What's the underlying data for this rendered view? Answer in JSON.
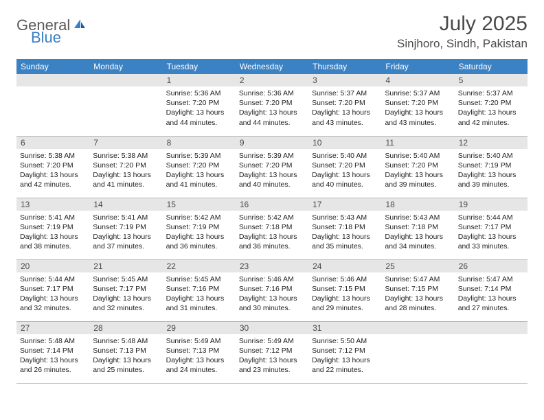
{
  "logo": {
    "general": "General",
    "blue": "Blue"
  },
  "title": {
    "month": "July 2025",
    "location": "Sinjhoro, Sindh, Pakistan"
  },
  "colors": {
    "header_bg": "#3b82c4",
    "header_text": "#ffffff",
    "daynum_bg": "#e6e6e6",
    "daynum_text": "#4a4a4a",
    "border": "#b8b8b8",
    "body_text": "#222222",
    "logo_gray": "#5a5a5a",
    "logo_blue": "#3b7fc4"
  },
  "day_headers": [
    "Sunday",
    "Monday",
    "Tuesday",
    "Wednesday",
    "Thursday",
    "Friday",
    "Saturday"
  ],
  "weeks": [
    [
      null,
      null,
      {
        "num": "1",
        "sunrise": "Sunrise: 5:36 AM",
        "sunset": "Sunset: 7:20 PM",
        "day1": "Daylight: 13 hours",
        "day2": "and 44 minutes."
      },
      {
        "num": "2",
        "sunrise": "Sunrise: 5:36 AM",
        "sunset": "Sunset: 7:20 PM",
        "day1": "Daylight: 13 hours",
        "day2": "and 44 minutes."
      },
      {
        "num": "3",
        "sunrise": "Sunrise: 5:37 AM",
        "sunset": "Sunset: 7:20 PM",
        "day1": "Daylight: 13 hours",
        "day2": "and 43 minutes."
      },
      {
        "num": "4",
        "sunrise": "Sunrise: 5:37 AM",
        "sunset": "Sunset: 7:20 PM",
        "day1": "Daylight: 13 hours",
        "day2": "and 43 minutes."
      },
      {
        "num": "5",
        "sunrise": "Sunrise: 5:37 AM",
        "sunset": "Sunset: 7:20 PM",
        "day1": "Daylight: 13 hours",
        "day2": "and 42 minutes."
      }
    ],
    [
      {
        "num": "6",
        "sunrise": "Sunrise: 5:38 AM",
        "sunset": "Sunset: 7:20 PM",
        "day1": "Daylight: 13 hours",
        "day2": "and 42 minutes."
      },
      {
        "num": "7",
        "sunrise": "Sunrise: 5:38 AM",
        "sunset": "Sunset: 7:20 PM",
        "day1": "Daylight: 13 hours",
        "day2": "and 41 minutes."
      },
      {
        "num": "8",
        "sunrise": "Sunrise: 5:39 AM",
        "sunset": "Sunset: 7:20 PM",
        "day1": "Daylight: 13 hours",
        "day2": "and 41 minutes."
      },
      {
        "num": "9",
        "sunrise": "Sunrise: 5:39 AM",
        "sunset": "Sunset: 7:20 PM",
        "day1": "Daylight: 13 hours",
        "day2": "and 40 minutes."
      },
      {
        "num": "10",
        "sunrise": "Sunrise: 5:40 AM",
        "sunset": "Sunset: 7:20 PM",
        "day1": "Daylight: 13 hours",
        "day2": "and 40 minutes."
      },
      {
        "num": "11",
        "sunrise": "Sunrise: 5:40 AM",
        "sunset": "Sunset: 7:20 PM",
        "day1": "Daylight: 13 hours",
        "day2": "and 39 minutes."
      },
      {
        "num": "12",
        "sunrise": "Sunrise: 5:40 AM",
        "sunset": "Sunset: 7:19 PM",
        "day1": "Daylight: 13 hours",
        "day2": "and 39 minutes."
      }
    ],
    [
      {
        "num": "13",
        "sunrise": "Sunrise: 5:41 AM",
        "sunset": "Sunset: 7:19 PM",
        "day1": "Daylight: 13 hours",
        "day2": "and 38 minutes."
      },
      {
        "num": "14",
        "sunrise": "Sunrise: 5:41 AM",
        "sunset": "Sunset: 7:19 PM",
        "day1": "Daylight: 13 hours",
        "day2": "and 37 minutes."
      },
      {
        "num": "15",
        "sunrise": "Sunrise: 5:42 AM",
        "sunset": "Sunset: 7:19 PM",
        "day1": "Daylight: 13 hours",
        "day2": "and 36 minutes."
      },
      {
        "num": "16",
        "sunrise": "Sunrise: 5:42 AM",
        "sunset": "Sunset: 7:18 PM",
        "day1": "Daylight: 13 hours",
        "day2": "and 36 minutes."
      },
      {
        "num": "17",
        "sunrise": "Sunrise: 5:43 AM",
        "sunset": "Sunset: 7:18 PM",
        "day1": "Daylight: 13 hours",
        "day2": "and 35 minutes."
      },
      {
        "num": "18",
        "sunrise": "Sunrise: 5:43 AM",
        "sunset": "Sunset: 7:18 PM",
        "day1": "Daylight: 13 hours",
        "day2": "and 34 minutes."
      },
      {
        "num": "19",
        "sunrise": "Sunrise: 5:44 AM",
        "sunset": "Sunset: 7:17 PM",
        "day1": "Daylight: 13 hours",
        "day2": "and 33 minutes."
      }
    ],
    [
      {
        "num": "20",
        "sunrise": "Sunrise: 5:44 AM",
        "sunset": "Sunset: 7:17 PM",
        "day1": "Daylight: 13 hours",
        "day2": "and 32 minutes."
      },
      {
        "num": "21",
        "sunrise": "Sunrise: 5:45 AM",
        "sunset": "Sunset: 7:17 PM",
        "day1": "Daylight: 13 hours",
        "day2": "and 32 minutes."
      },
      {
        "num": "22",
        "sunrise": "Sunrise: 5:45 AM",
        "sunset": "Sunset: 7:16 PM",
        "day1": "Daylight: 13 hours",
        "day2": "and 31 minutes."
      },
      {
        "num": "23",
        "sunrise": "Sunrise: 5:46 AM",
        "sunset": "Sunset: 7:16 PM",
        "day1": "Daylight: 13 hours",
        "day2": "and 30 minutes."
      },
      {
        "num": "24",
        "sunrise": "Sunrise: 5:46 AM",
        "sunset": "Sunset: 7:15 PM",
        "day1": "Daylight: 13 hours",
        "day2": "and 29 minutes."
      },
      {
        "num": "25",
        "sunrise": "Sunrise: 5:47 AM",
        "sunset": "Sunset: 7:15 PM",
        "day1": "Daylight: 13 hours",
        "day2": "and 28 minutes."
      },
      {
        "num": "26",
        "sunrise": "Sunrise: 5:47 AM",
        "sunset": "Sunset: 7:14 PM",
        "day1": "Daylight: 13 hours",
        "day2": "and 27 minutes."
      }
    ],
    [
      {
        "num": "27",
        "sunrise": "Sunrise: 5:48 AM",
        "sunset": "Sunset: 7:14 PM",
        "day1": "Daylight: 13 hours",
        "day2": "and 26 minutes."
      },
      {
        "num": "28",
        "sunrise": "Sunrise: 5:48 AM",
        "sunset": "Sunset: 7:13 PM",
        "day1": "Daylight: 13 hours",
        "day2": "and 25 minutes."
      },
      {
        "num": "29",
        "sunrise": "Sunrise: 5:49 AM",
        "sunset": "Sunset: 7:13 PM",
        "day1": "Daylight: 13 hours",
        "day2": "and 24 minutes."
      },
      {
        "num": "30",
        "sunrise": "Sunrise: 5:49 AM",
        "sunset": "Sunset: 7:12 PM",
        "day1": "Daylight: 13 hours",
        "day2": "and 23 minutes."
      },
      {
        "num": "31",
        "sunrise": "Sunrise: 5:50 AM",
        "sunset": "Sunset: 7:12 PM",
        "day1": "Daylight: 13 hours",
        "day2": "and 22 minutes."
      },
      null,
      null
    ]
  ]
}
